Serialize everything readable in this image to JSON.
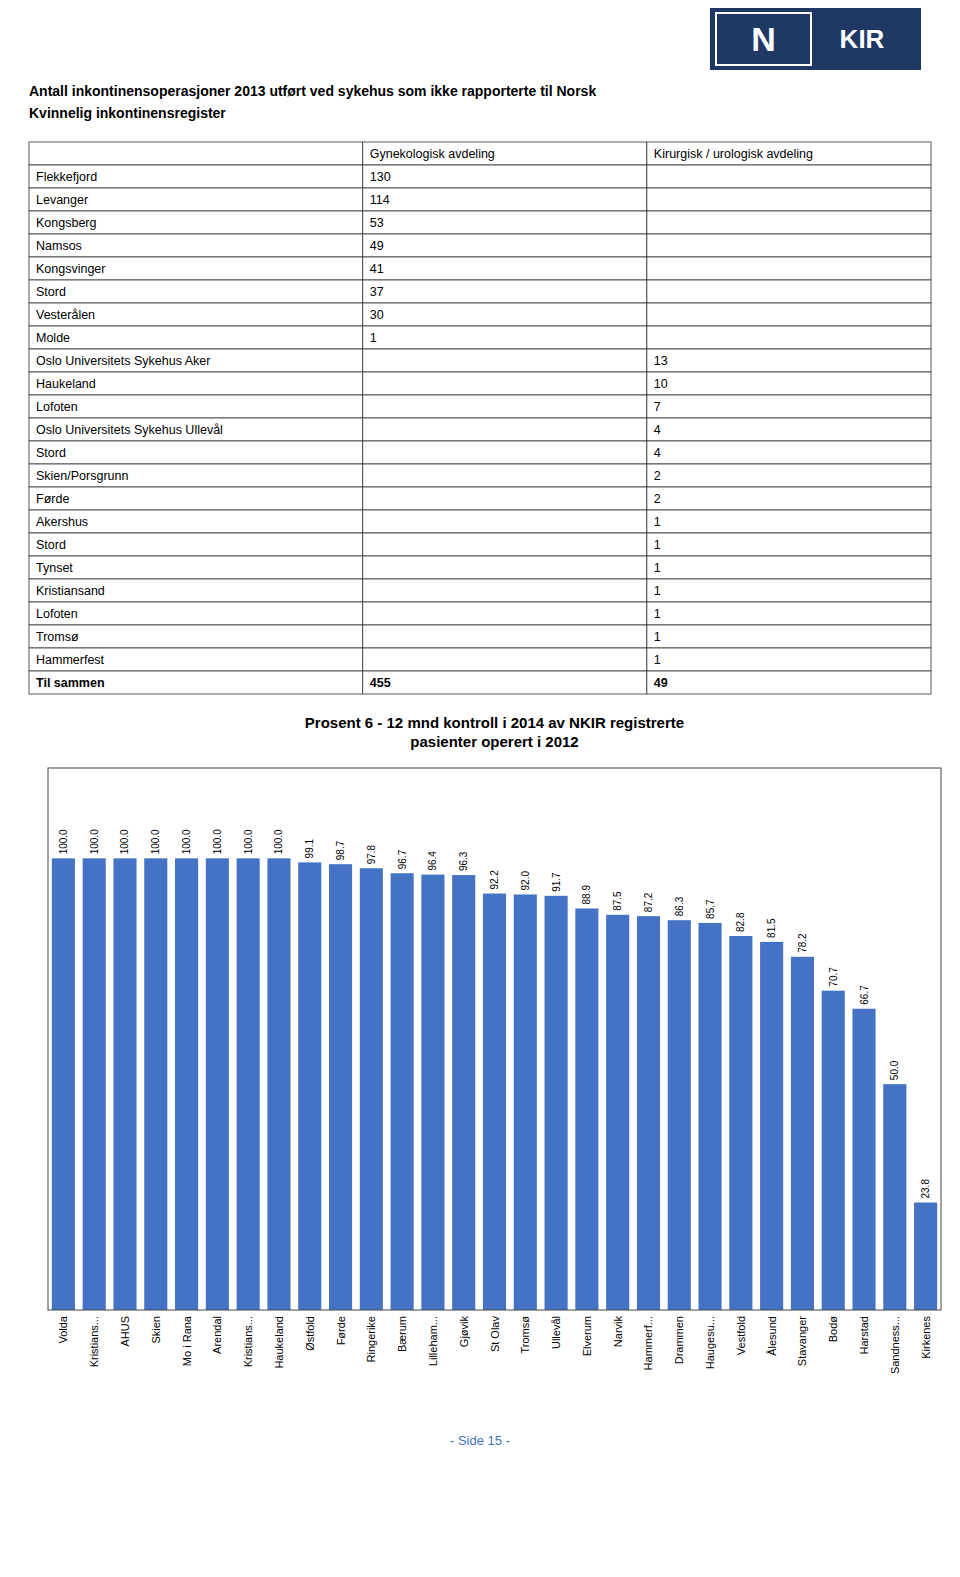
{
  "chart_data": {
    "type": "bar",
    "title": "Prosent 6 - 12 mnd kontroll i 2014 av NKIR registrerte\npasienter operert i 2012",
    "categories": [
      "Volda",
      "Kristians...",
      "AHUS",
      "Skien",
      "Mo i Rana",
      "Arendal",
      "Kristians...",
      "Haukeland",
      "Østfold",
      "Førde",
      "Ringerike",
      "Bærum",
      "Lilleham...",
      "Gjøvik",
      "St Olav",
      "Tromsø",
      "Ullevål",
      "Elverum",
      "Narvik",
      "Hammerf...",
      "Drammen",
      "Haugesu...",
      "Vestfold",
      "Ålesund",
      "Stavanger",
      "Bodø",
      "Harstad",
      "Sandness...",
      "Kirkenes"
    ],
    "values": [
      100.0,
      100.0,
      100.0,
      100.0,
      100.0,
      100.0,
      100.0,
      100.0,
      99.1,
      98.7,
      97.8,
      96.7,
      96.4,
      96.3,
      92.2,
      92.0,
      91.7,
      88.9,
      87.5,
      87.2,
      86.3,
      85.7,
      82.8,
      81.5,
      78.2,
      70.7,
      66.7,
      50.0,
      23.8
    ],
    "value_labels": [
      "100.0",
      "100.0",
      "100.0",
      "100.0",
      "100.0",
      "100.0",
      "100.0",
      "100.0",
      "99.1",
      "98.7",
      "97.8",
      "96.7",
      "96.4",
      "96.3",
      "92.2",
      "92.0",
      "91.7",
      "88.9",
      "87.5",
      "87.2",
      "86.3",
      "85.7",
      "82.8",
      "81.5",
      "78.2",
      "70.7",
      "66.7",
      "50.0",
      "23.8"
    ],
    "color": "#4472C4",
    "ylim": [
      0,
      120
    ],
    "yticks": [],
    "grid": false,
    "data_labels": true,
    "tick_labels": "x"
  },
  "page": {
    "logo_text": [
      "N",
      "KIR"
    ],
    "logo_color": "#1F3864",
    "title": [
      "Antall inkontinensoperasjoner 2013 utført ved sykehus som ikke rapporterte til Norsk",
      "Kvinnelig inkontinensregister"
    ],
    "table": {
      "headers": [
        null,
        "Gynekologisk avdeling",
        "Kirurgisk / urologisk avdeling"
      ],
      "rows": [
        [
          "Flekkefjord",
          "130",
          null
        ],
        [
          "Levanger",
          "114",
          null
        ],
        [
          "Kongsberg",
          "53",
          null
        ],
        [
          "Namsos",
          "49",
          null
        ],
        [
          "Kongsvinger",
          "41",
          null
        ],
        [
          "Stord",
          "37",
          null
        ],
        [
          "Vesterålen",
          "30",
          null
        ],
        [
          "Molde",
          "1",
          null
        ],
        [
          "Oslo Universitets Sykehus Aker",
          null,
          "13"
        ],
        [
          "Haukeland",
          null,
          "10"
        ],
        [
          "Lofoten",
          null,
          "7"
        ],
        [
          "Oslo Universitets Sykehus Ullevål",
          null,
          "4"
        ],
        [
          "Stord",
          null,
          "4"
        ],
        [
          "Skien/Porsgrunn",
          null,
          "2"
        ],
        [
          "Førde",
          null,
          "2"
        ],
        [
          "Akershus",
          null,
          "1"
        ],
        [
          "Stord",
          null,
          "1"
        ],
        [
          "Tynset",
          null,
          "1"
        ],
        [
          "Kristiansand",
          null,
          "1"
        ],
        [
          "Lofoten",
          null,
          "1"
        ],
        [
          "Tromsø",
          null,
          "1"
        ],
        [
          "Hammerfest",
          null,
          "1"
        ],
        [
          "Til sammen",
          "455",
          "49"
        ]
      ]
    },
    "page_label": "- Side 15 -"
  }
}
